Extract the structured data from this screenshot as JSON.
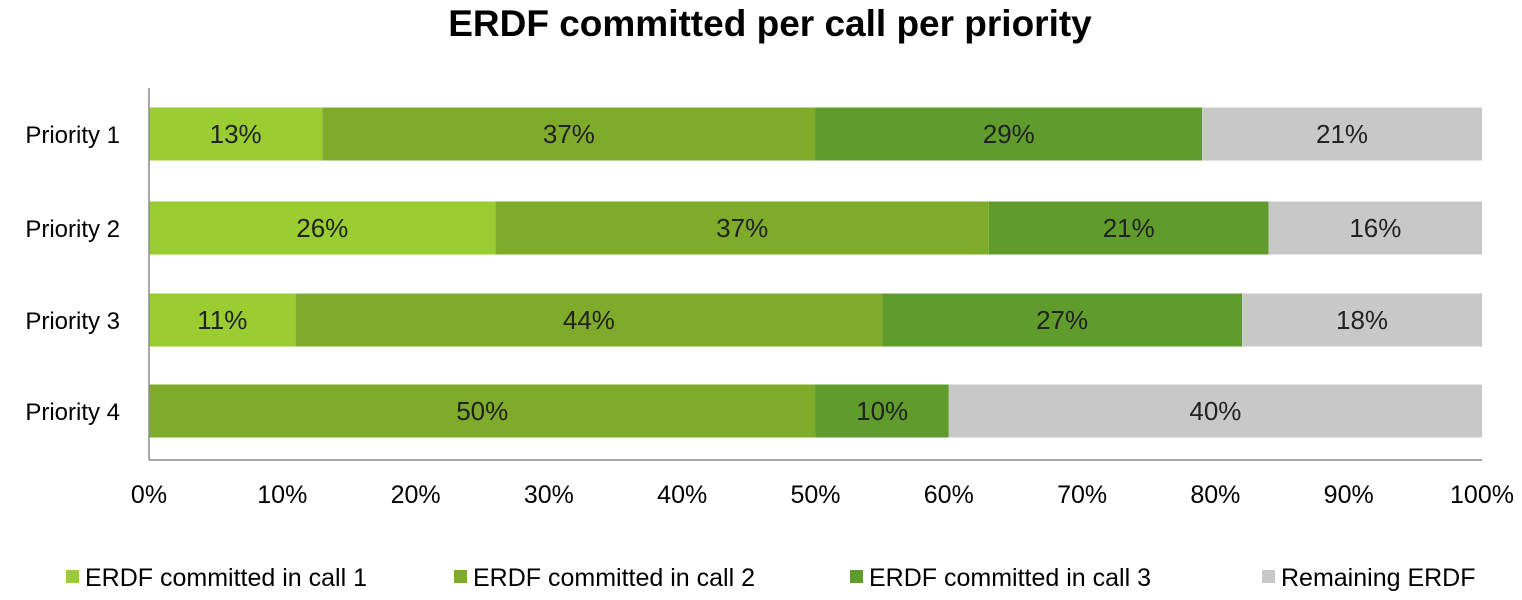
{
  "chart_data": {
    "type": "bar",
    "orientation": "horizontal",
    "stacked": true,
    "title": "ERDF committed per call per priority",
    "xlabel": "",
    "ylabel": "",
    "xlim": [
      0,
      100
    ],
    "x_ticks": [
      "0%",
      "10%",
      "20%",
      "30%",
      "40%",
      "50%",
      "60%",
      "70%",
      "80%",
      "90%",
      "100%"
    ],
    "grid": false,
    "legend_position": "bottom",
    "categories": [
      "Priority 1",
      "Priority 2",
      "Priority 3",
      "Priority 4"
    ],
    "series": [
      {
        "name": "ERDF committed in call 1",
        "color": "#9acd32",
        "values": [
          13,
          26,
          11,
          0
        ],
        "labels": [
          "13%",
          "26%",
          "11%",
          ""
        ]
      },
      {
        "name": "ERDF committed in call 2",
        "color": "#7fab2a",
        "values": [
          37,
          37,
          44,
          50
        ],
        "labels": [
          "37%",
          "37%",
          "44%",
          "50%"
        ]
      },
      {
        "name": "ERDF committed in call 3",
        "color": "#5f9c2b",
        "values": [
          29,
          21,
          27,
          10
        ],
        "labels": [
          "29%",
          "21%",
          "27%",
          "10%"
        ]
      },
      {
        "name": "Remaining ERDF",
        "color": "#c8c8c8",
        "values": [
          21,
          16,
          18,
          40
        ],
        "labels": [
          "21%",
          "16%",
          "18%",
          "40%"
        ]
      }
    ]
  }
}
